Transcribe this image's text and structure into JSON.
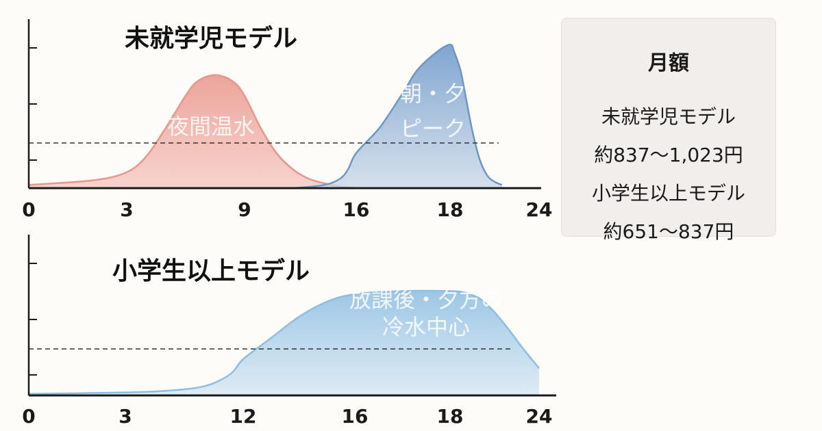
{
  "chart_data": [
    {
      "type": "area",
      "title": "未就学児モデル",
      "x_ticks": [
        0,
        3,
        9,
        16,
        18,
        24
      ],
      "xlim": [
        0,
        24
      ],
      "threshold_line": "dashed",
      "grid": false,
      "series": [
        {
          "label": "夜間温水",
          "color": "#e8958a",
          "fill": "#f5c6c0",
          "x": [
            0,
            2,
            3,
            4,
            5,
            6,
            6.6,
            7.5,
            8.4,
            9,
            10,
            11,
            12,
            13,
            14,
            15,
            16
          ],
          "y": [
            0.02,
            0.05,
            0.1,
            0.2,
            0.38,
            0.58,
            0.67,
            0.71,
            0.67,
            0.58,
            0.38,
            0.22,
            0.12,
            0.06,
            0.03,
            0.01,
            0
          ]
        },
        {
          "label": "朝・夕 ピーク",
          "color": "#6b96c9",
          "fill": "#c8d7e8",
          "x": [
            12,
            14,
            15,
            15.5,
            16,
            16.5,
            17,
            17.3,
            17.7,
            18,
            18.3,
            18.7,
            19,
            19.5,
            20,
            20.5,
            21,
            21.5
          ],
          "y": [
            0,
            0.02,
            0.06,
            0.12,
            0.22,
            0.38,
            0.6,
            0.74,
            0.85,
            0.9,
            0.85,
            0.74,
            0.6,
            0.36,
            0.18,
            0.08,
            0.04,
            0.02
          ]
        }
      ],
      "ylim": [
        0,
        1
      ]
    },
    {
      "type": "area",
      "title": "小学生以上モデル",
      "x_ticks": [
        0,
        3,
        12,
        16,
        18,
        24
      ],
      "xlim": [
        0,
        24
      ],
      "threshold_line": "dashed",
      "grid": false,
      "series": [
        {
          "label": "放課後・夕方の 冷水中心",
          "color": "#8cbde3",
          "fill": "#d4e6f2",
          "x": [
            0,
            3,
            6,
            9,
            11,
            12,
            13,
            14,
            15,
            16,
            17,
            18,
            19,
            20,
            21,
            22,
            23,
            24
          ],
          "y": [
            0.01,
            0.02,
            0.03,
            0.06,
            0.14,
            0.24,
            0.38,
            0.52,
            0.62,
            0.67,
            0.69,
            0.69,
            0.68,
            0.64,
            0.55,
            0.43,
            0.3,
            0.18
          ]
        }
      ],
      "ylim": [
        0,
        1
      ]
    }
  ],
  "monthly_panel": {
    "title": "月額",
    "lines": [
      "未就学児モデル",
      "約837～1,023円",
      "小学生以上モデル",
      "約651～837円"
    ]
  },
  "colors": {
    "axis": "#1a1a1a",
    "dash": "#333333"
  }
}
